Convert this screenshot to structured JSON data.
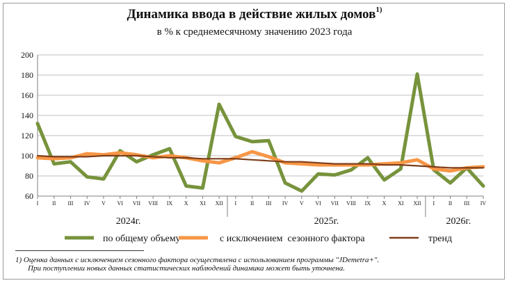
{
  "chart_data": {
    "type": "line",
    "title": "Динамика ввода в действие жилых домов",
    "title_sup": "1)",
    "subtitle": "в % к среднемесячному значению 2023  года",
    "xlabel": "",
    "ylabel": "",
    "ylim": [
      60,
      200
    ],
    "yticks": [
      "60",
      "80",
      "100",
      "120",
      "140",
      "160",
      "180",
      "200"
    ],
    "grid": true,
    "legend_position": "bottom",
    "months": [
      "I",
      "II",
      "III",
      "IV",
      "V",
      "VI",
      "VII",
      "VIII",
      "IX",
      "X",
      "XI",
      "XII",
      "I",
      "II",
      "III",
      "IV",
      "V",
      "VI",
      "VII",
      "VIII",
      "IX",
      "X",
      "XI",
      "XII",
      "I",
      "II",
      "III",
      "IV"
    ],
    "years": [
      {
        "label": "2024г.",
        "center_index": 5.5
      },
      {
        "label": "2025г.",
        "center_index": 17.5
      },
      {
        "label": "2026г.",
        "center_index": 25.5
      }
    ],
    "series": [
      {
        "name": "по общему объему",
        "color": "#77933c",
        "values": [
          132,
          92,
          94,
          79,
          77,
          105,
          94,
          101,
          107,
          70,
          68,
          151,
          119,
          114,
          115,
          73,
          65,
          82,
          81,
          86,
          98,
          76,
          87,
          181,
          86,
          73,
          88,
          70
        ]
      },
      {
        "name": "с исключением  сезонного фактора",
        "color": "#f79646",
        "values": [
          98,
          97,
          98,
          102,
          101,
          103,
          101,
          98,
          100,
          98,
          95,
          93,
          98,
          104,
          99,
          93,
          92,
          91,
          91,
          91,
          91,
          92,
          93,
          96,
          87,
          85,
          88,
          89
        ]
      },
      {
        "name": "тренд",
        "color": "#7f3e1a",
        "values": [
          100,
          99,
          99,
          99,
          100,
          100,
          100,
          99,
          98,
          98,
          97,
          97,
          97,
          96,
          95,
          94,
          94,
          93,
          92,
          92,
          92,
          91,
          91,
          90,
          89,
          88,
          88,
          88
        ]
      }
    ]
  },
  "footnote": {
    "line1": "1)  Оценка данных с исключением сезонного фактора осуществлена с использованием программы \"JDemetra+\".",
    "line2": "При поступлении новых данных статистических наблюдений динамика может быть уточнена."
  }
}
